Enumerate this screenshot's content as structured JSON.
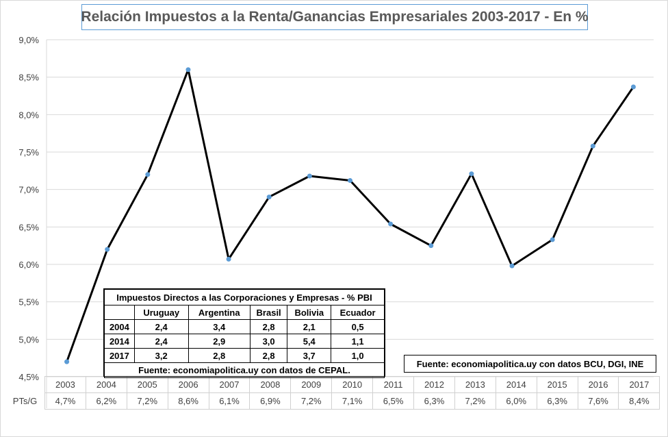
{
  "chart_data": {
    "type": "line",
    "title": "Relación Impuestos a la Renta/Ganancias Empresariales 2003-2017  - En %",
    "xlabel": "",
    "ylabel": "",
    "ylim": [
      4.5,
      9.0
    ],
    "yticks": [
      "4,5%",
      "5,0%",
      "5,5%",
      "6,0%",
      "6,5%",
      "7,0%",
      "7,5%",
      "8,0%",
      "8,5%",
      "9,0%"
    ],
    "categories": [
      "2003",
      "2004",
      "2005",
      "2006",
      "2007",
      "2008",
      "2009",
      "2010",
      "2011",
      "2012",
      "2013",
      "2014",
      "2015",
      "2016",
      "2017"
    ],
    "series": [
      {
        "name": "PTs/G",
        "values": [
          4.7,
          6.2,
          7.2,
          8.6,
          6.07,
          6.9,
          7.18,
          7.12,
          6.54,
          6.25,
          7.21,
          5.98,
          6.33,
          7.58,
          8.37
        ],
        "labels": [
          "4,7%",
          "6,2%",
          "7,2%",
          "8,6%",
          "6,1%",
          "6,9%",
          "7,2%",
          "7,1%",
          "6,5%",
          "6,3%",
          "7,2%",
          "6,0%",
          "6,3%",
          "7,6%",
          "8,4%"
        ]
      }
    ],
    "grid": true,
    "legend": "data-table",
    "line_color": "#000000",
    "marker_color": "#5b9bd5"
  },
  "inset_table": {
    "title": "Impuestos Directos a las Corporaciones y Empresas - % PBI",
    "columns": [
      "",
      "Uruguay",
      "Argentina",
      "Brasil",
      "Bolivia",
      "Ecuador"
    ],
    "rows": [
      [
        "2004",
        "2,4",
        "3,4",
        "2,8",
        "2,1",
        "0,5"
      ],
      [
        "2014",
        "2,4",
        "2,9",
        "3,0",
        "5,4",
        "1,1"
      ],
      [
        "2017",
        "3,2",
        "2,8",
        "2,8",
        "3,7",
        "1,0"
      ]
    ],
    "footer": "Fuente: economiapolitica.uy con datos de CEPAL."
  },
  "source_note": "Fuente: economiapolitica.uy con datos BCU, DGI, INE",
  "colors": {
    "title_border": "#5b9bd5",
    "grid": "#d9d9d9",
    "text": "#404040"
  }
}
